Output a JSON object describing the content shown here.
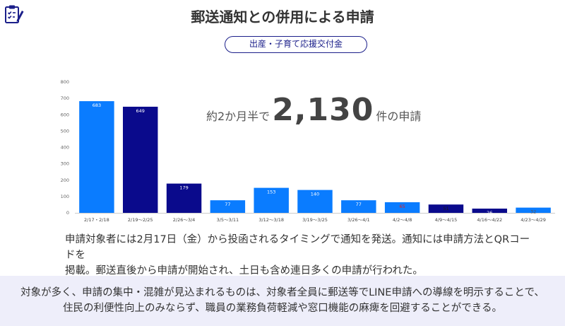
{
  "header": {
    "logo_icon": "checklist-pencil-icon",
    "title": "郵送通知との併用による申請",
    "tag": "出産・子育て応援交付金"
  },
  "summary": {
    "prefix": "約2か月半で",
    "total": "2,130",
    "suffix": "件の申請"
  },
  "chart_data": {
    "type": "bar",
    "categories": [
      "2/17・2/18",
      "2/19〜2/25",
      "2/26〜3/4",
      "3/5〜3/11",
      "3/12〜3/18",
      "3/19〜3/25",
      "3/26〜4/1",
      "4/2〜4/8",
      "4/9〜4/15",
      "4/16〜4/22",
      "4/23〜4/29"
    ],
    "values": [
      683,
      649,
      179,
      77,
      153,
      140,
      77,
      65,
      51,
      26,
      32
    ],
    "value_labels": [
      "683",
      "649",
      "179",
      "77",
      "153",
      "140",
      "77",
      "65",
      "51",
      "26",
      "32"
    ],
    "bar_colors": [
      "#0a7cff",
      "#0a0a8c",
      "#0a0a8c",
      "#0a7cff",
      "#0a7cff",
      "#0a7cff",
      "#0a7cff",
      "#0a7cff",
      "#0a0a8c",
      "#0a0a8c",
      "#0a7cff"
    ],
    "label_colors": [
      "#ffffff",
      "#ffffff",
      "#ffffff",
      "#ffffff",
      "#ffffff",
      "#ffffff",
      "#ffffff",
      "#e02020",
      "#1a1a1a",
      "#ffffff",
      "#555555"
    ],
    "yticks": [
      0,
      100,
      200,
      300,
      400,
      500,
      600,
      700,
      800
    ],
    "ylim": [
      0,
      800
    ],
    "grid": false,
    "title": "",
    "xlabel": "",
    "ylabel": ""
  },
  "description": {
    "line1": "申請対象者には2月17日（金）から投函されるタイミングで通知を発送。通知には申請方法とQRコードを",
    "line2": "掲載。郵送直後から申請が開始され、土日も含め連日多くの申請が行われた。"
  },
  "conclusion": {
    "line1": "対象が多く、申請の集中・混雑が見込まれるものは、対象者全員に郵送等でLINE申請への導線を明示することで、",
    "line2": "住民の利便性向上のみならず、職員の業務負荷軽減や窓口機能の麻痺を回避することができる。"
  }
}
